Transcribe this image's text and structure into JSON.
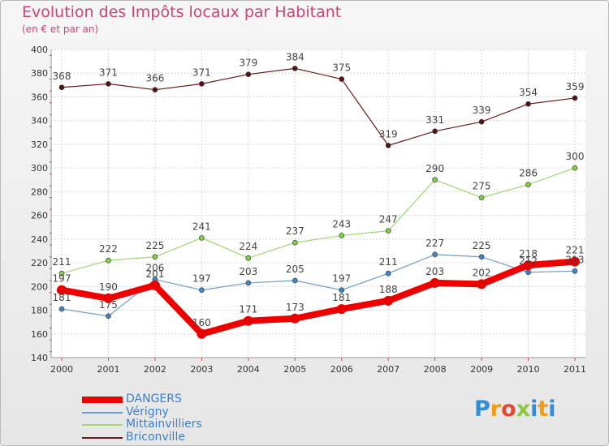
{
  "header": {
    "title": "Evolution des Impôts locaux par Habitant",
    "subtitle": "(en € et par an)"
  },
  "logo": {
    "letters": [
      "P",
      "r",
      "o",
      "x",
      "i",
      "t",
      "i"
    ]
  },
  "chart_data": {
    "type": "line",
    "title": "Evolution des Impôts locaux par Habitant",
    "subtitle": "(en € et par an)",
    "xlabel": "",
    "ylabel": "",
    "ylim": [
      140,
      400
    ],
    "ytick_step": 20,
    "grid": true,
    "legend_position": "bottom-left",
    "categories": [
      "2000",
      "2001",
      "2002",
      "2003",
      "2004",
      "2005",
      "2006",
      "2007",
      "2008",
      "2009",
      "2010",
      "2011"
    ],
    "series": [
      {
        "name": "Briconville",
        "color": "#6b1a1a",
        "marker": "#5a1010",
        "width": 1.2,
        "radius": 3,
        "values": [
          368,
          371,
          366,
          371,
          379,
          384,
          375,
          319,
          331,
          339,
          354,
          359
        ],
        "labels": [
          "368",
          "371",
          "366",
          "371",
          "379",
          "384",
          "375",
          "319",
          "331",
          "339",
          "354",
          "359"
        ]
      },
      {
        "name": "Mittainvilliers",
        "color": "#9ed86f",
        "marker": "#7dd040",
        "width": 1.2,
        "radius": 3,
        "values": [
          211,
          222,
          225,
          241,
          224,
          237,
          243,
          247,
          290,
          275,
          286,
          300
        ],
        "labels": [
          "211",
          "222",
          "225",
          "241",
          "224",
          "237",
          "243",
          "247",
          "290",
          "275",
          "286",
          "300"
        ]
      },
      {
        "name": "Vérigny",
        "color": "#6d9cc6",
        "marker": "#3f86c8",
        "width": 1.2,
        "radius": 3,
        "values": [
          181,
          175,
          206,
          197,
          203,
          205,
          197,
          211,
          227,
          225,
          212,
          213
        ],
        "labels": [
          "181",
          "175",
          "206",
          "197",
          "203",
          "205",
          "197",
          "211",
          "227",
          "225",
          "212",
          "213"
        ]
      },
      {
        "name": "DANGERS",
        "color": "#ee0000",
        "marker": "#e60000",
        "width": 8,
        "radius": 6,
        "values": [
          197,
          190,
          201,
          160,
          171,
          173,
          181,
          188,
          203,
          202,
          218,
          221
        ],
        "labels": [
          "197",
          "190",
          "201",
          "160",
          "171",
          "173",
          "181",
          "188",
          "203",
          "202",
          "218",
          "221"
        ]
      }
    ],
    "legend_order": [
      "DANGERS",
      "Vérigny",
      "Mittainvilliers",
      "Briconville"
    ]
  }
}
